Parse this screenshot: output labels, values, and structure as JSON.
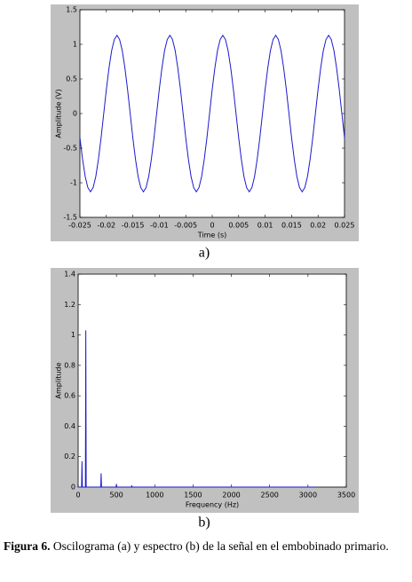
{
  "chart_data": [
    {
      "type": "line",
      "label": "a)",
      "xlabel": "Time (s)",
      "ylabel": "Amplitude (V)",
      "xlim": [
        -0.025,
        0.025
      ],
      "ylim": [
        -1.5,
        1.5
      ],
      "xticks": [
        -0.025,
        -0.02,
        -0.015,
        -0.01,
        -0.005,
        0,
        0.005,
        0.01,
        0.015,
        0.02,
        0.025
      ],
      "yticks": [
        -1.5,
        -1,
        -0.5,
        0,
        0.5,
        1,
        1.5
      ],
      "x": [
        -0.025,
        -0.0245,
        -0.024,
        -0.0235,
        -0.023,
        -0.0225,
        -0.022,
        -0.0215,
        -0.021,
        -0.0205,
        -0.02,
        -0.0195,
        -0.019,
        -0.0185,
        -0.018,
        -0.0175,
        -0.017,
        -0.0165,
        -0.016,
        -0.0155,
        -0.015,
        -0.0145,
        -0.014,
        -0.0135,
        -0.013,
        -0.0125,
        -0.012,
        -0.0115,
        -0.011,
        -0.0105,
        -0.01,
        -0.0095,
        -0.009,
        -0.0085,
        -0.008,
        -0.0075,
        -0.007,
        -0.0065,
        -0.006,
        -0.0055,
        -0.005,
        -0.0045,
        -0.004,
        -0.0035,
        -0.003,
        -0.0025,
        -0.002,
        -0.0015,
        -0.001,
        -0.0005,
        0,
        0.0005,
        0.001,
        0.0015,
        0.002,
        0.0025,
        0.003,
        0.0035,
        0.004,
        0.0045,
        0.005,
        0.0055,
        0.006,
        0.0065,
        0.007,
        0.0075,
        0.008,
        0.0085,
        0.009,
        0.0095,
        0.01,
        0.0105,
        0.011,
        0.0115,
        0.012,
        0.0125,
        0.013,
        0.0135,
        0.014,
        0.0145,
        0.015,
        0.0155,
        0.016,
        0.0165,
        0.017,
        0.0175,
        0.018,
        0.0185,
        0.019,
        0.0195,
        0.02,
        0.0205,
        0.021,
        0.0215,
        0.022,
        0.0225,
        0.023,
        0.0235,
        0.024,
        0.0245,
        0.025
      ],
      "series": [
        {
          "color": "#1a1acc",
          "values": [
            -0.35,
            -0.66,
            -0.91,
            -1.07,
            -1.13,
            -1.07,
            -0.91,
            -0.66,
            -0.35,
            0,
            0.35,
            0.66,
            0.91,
            1.07,
            1.13,
            1.07,
            0.91,
            0.66,
            0.35,
            0,
            -0.35,
            -0.66,
            -0.91,
            -1.07,
            -1.13,
            -1.07,
            -0.91,
            -0.66,
            -0.35,
            0,
            0.35,
            0.66,
            0.91,
            1.07,
            1.13,
            1.07,
            0.91,
            0.66,
            0.35,
            0,
            -0.35,
            -0.66,
            -0.91,
            -1.07,
            -1.13,
            -1.07,
            -0.91,
            -0.66,
            -0.35,
            0,
            0.35,
            0.66,
            0.91,
            1.07,
            1.13,
            1.07,
            0.91,
            0.66,
            0.35,
            0,
            -0.35,
            -0.66,
            -0.91,
            -1.07,
            -1.13,
            -1.07,
            -0.91,
            -0.66,
            -0.35,
            0,
            0.35,
            0.66,
            0.91,
            1.07,
            1.13,
            1.07,
            0.91,
            0.66,
            0.35,
            0,
            -0.35,
            -0.66,
            -0.91,
            -1.07,
            -1.13,
            -1.07,
            -0.91,
            -0.66,
            -0.35,
            0,
            0.35,
            0.66,
            0.91,
            1.07,
            1.13,
            1.07,
            0.91,
            0.66,
            0.35,
            0,
            -0.35
          ]
        }
      ]
    },
    {
      "type": "line",
      "label": "b)",
      "xlabel": "Frequency (Hz)",
      "ylabel": "Amplitude",
      "xlim": [
        0,
        3500
      ],
      "ylim": [
        0,
        1.4
      ],
      "xticks": [
        0,
        500,
        1000,
        1500,
        2000,
        2500,
        3000,
        3500
      ],
      "yticks": [
        0,
        0.2,
        0.4,
        0.6,
        0.8,
        1,
        1.2,
        1.4
      ],
      "x": [
        0,
        45,
        50,
        55,
        95,
        100,
        105,
        295,
        300,
        305,
        495,
        500,
        505,
        695,
        700,
        705,
        3100
      ],
      "series": [
        {
          "color": "#1a1acc",
          "values": [
            0,
            0,
            0.17,
            0,
            0,
            1.03,
            0,
            0,
            0.09,
            0,
            0,
            0.02,
            0,
            0,
            0.01,
            0,
            0
          ]
        }
      ]
    }
  ],
  "caption": {
    "label": "Figura 6.",
    "text": "Oscilograma (a) y espectro (b) de la señal en el embobinado primario."
  }
}
